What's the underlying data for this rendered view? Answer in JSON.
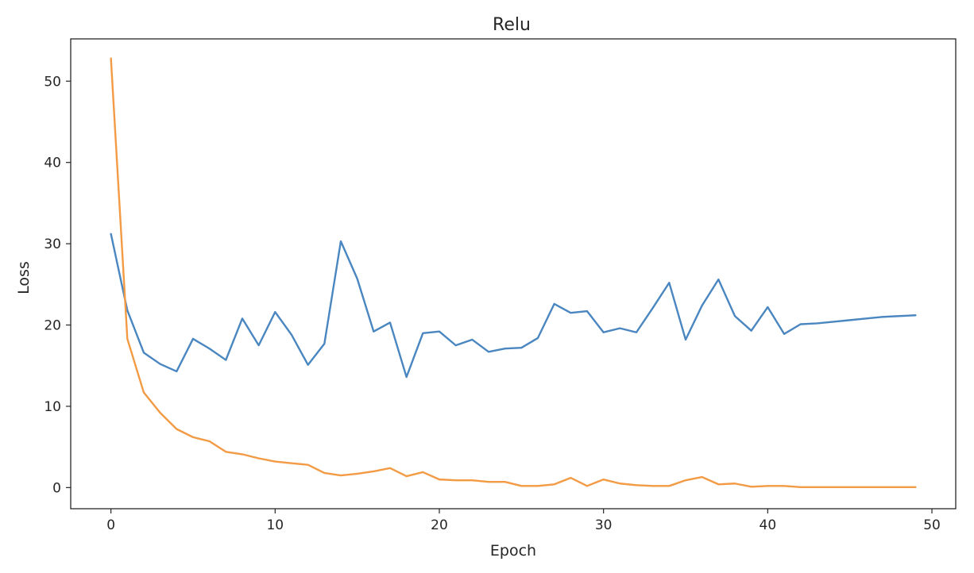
{
  "chart_data": {
    "type": "line",
    "title": "Relu",
    "xlabel": "Epoch",
    "ylabel": "Loss",
    "xlim": [
      -2.45,
      51.45
    ],
    "ylim": [
      -2.6,
      55.2
    ],
    "xticks": [
      0,
      10,
      20,
      30,
      40,
      50
    ],
    "yticks": [
      0,
      10,
      20,
      30,
      40,
      50
    ],
    "grid": false,
    "x": [
      0,
      1,
      2,
      3,
      4,
      5,
      6,
      7,
      8,
      9,
      10,
      11,
      12,
      13,
      14,
      15,
      16,
      17,
      18,
      19,
      20,
      21,
      22,
      23,
      24,
      25,
      26,
      27,
      28,
      29,
      30,
      31,
      32,
      33,
      34,
      35,
      36,
      37,
      38,
      39,
      40,
      41,
      42,
      43,
      44,
      45,
      46,
      47,
      48,
      49
    ],
    "series": [
      {
        "color": "#4a86c0",
        "values": [
          31.2,
          21.8,
          16.6,
          15.2,
          14.3,
          18.3,
          17.1,
          15.7,
          20.8,
          17.5,
          21.6,
          18.8,
          15.1,
          17.7,
          30.3,
          25.7,
          19.2,
          20.3,
          13.6,
          19.0,
          19.2,
          17.5,
          18.2,
          16.7,
          17.1,
          17.2,
          18.4,
          22.6,
          21.5,
          21.7,
          19.1,
          19.6,
          19.1,
          22.1,
          25.2,
          18.2,
          22.4,
          25.6,
          21.1,
          19.3,
          22.2,
          18.9,
          20.1,
          20.2,
          20.4,
          20.6,
          20.8,
          21.0,
          21.1,
          21.2
        ]
      },
      {
        "color": "#f39a44",
        "values": [
          52.8,
          18.3,
          11.7,
          9.2,
          7.2,
          6.2,
          5.7,
          4.4,
          4.1,
          3.6,
          3.2,
          3.0,
          2.8,
          1.8,
          1.5,
          1.7,
          2.0,
          2.4,
          1.4,
          1.9,
          1.0,
          0.9,
          0.9,
          0.7,
          0.7,
          0.2,
          0.2,
          0.4,
          1.2,
          0.2,
          1.0,
          0.5,
          0.3,
          0.2,
          0.2,
          0.9,
          1.3,
          0.4,
          0.5,
          0.1,
          0.2,
          0.2,
          0.05,
          0.05,
          0.05,
          0.05,
          0.05,
          0.05,
          0.05,
          0.05
        ]
      }
    ]
  }
}
